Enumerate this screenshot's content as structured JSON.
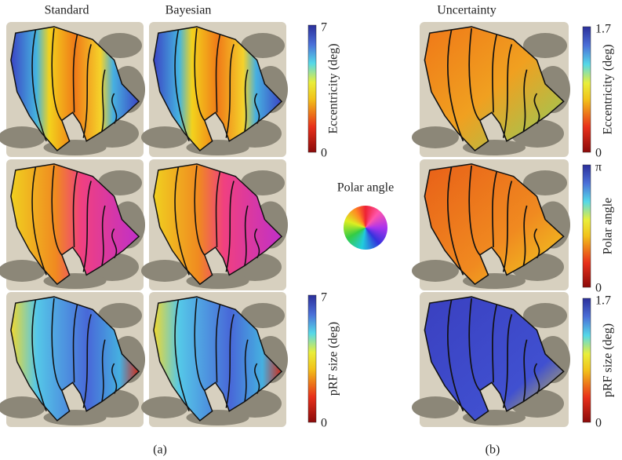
{
  "columns": {
    "standard": "Standard",
    "bayesian": "Bayesian",
    "uncertainty": "Uncertainty"
  },
  "colorbars": [
    {
      "label": "Eccentricity (deg)",
      "max": "7",
      "min": "0"
    },
    {
      "label": "pRF size (deg)",
      "max": "7",
      "min": "0"
    },
    {
      "label": "Eccentricity (deg)",
      "max": "1.7",
      "min": "0"
    },
    {
      "label": "Polar angle",
      "max": "π",
      "min": "0"
    },
    {
      "label": "pRF size (deg)",
      "max": "1.7",
      "min": "0"
    }
  ],
  "polar_legend": "Polar angle",
  "panel_labels": {
    "a": "(a)",
    "b": "(b)"
  }
}
